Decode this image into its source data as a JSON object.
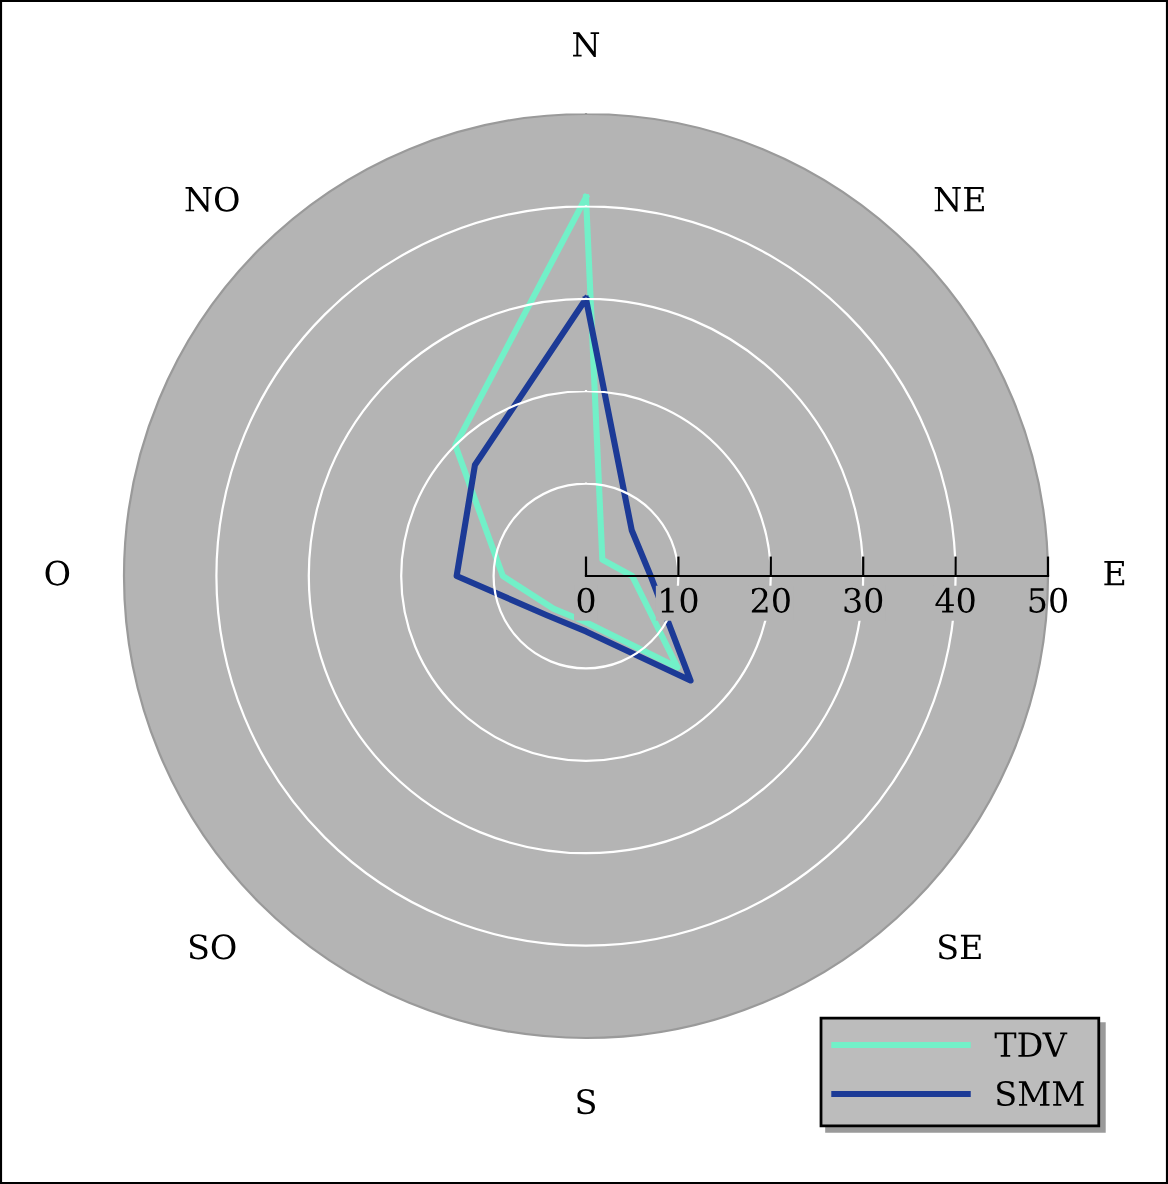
{
  "chart_data": {
    "type": "radar",
    "categories": [
      "N",
      "NE",
      "E",
      "SE",
      "S",
      "SO",
      "O",
      "NO"
    ],
    "series": [
      {
        "name": "TDV",
        "color": "#72f0c8",
        "values": [
          41,
          2.5,
          5,
          14,
          5,
          5,
          9,
          20
        ]
      },
      {
        "name": "SMM",
        "color": "#1c3a96",
        "values": [
          30,
          7,
          7,
          16,
          6,
          6,
          14,
          17
        ]
      }
    ],
    "ylim": [
      0,
      50
    ],
    "yticks": [
      0,
      10,
      20,
      30,
      40,
      50
    ],
    "grid": true,
    "legend": "bottom right"
  }
}
